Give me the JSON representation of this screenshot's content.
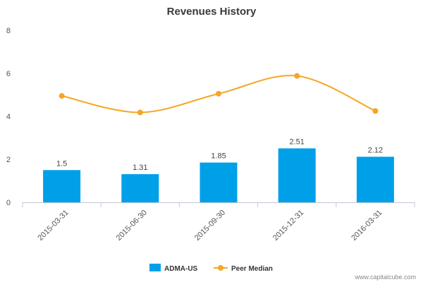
{
  "chart_data": {
    "type": "bar",
    "title": "Revenues History",
    "categories": [
      "2015-03-31",
      "2015-06-30",
      "2015-09-30",
      "2015-12-31",
      "2016-03-31"
    ],
    "series": [
      {
        "name": "ADMA-US",
        "kind": "bar",
        "values": [
          1.5,
          1.31,
          1.85,
          2.51,
          2.12
        ],
        "labels": [
          "1.5",
          "1.31",
          "1.85",
          "2.51",
          "2.12"
        ],
        "color": "#00a0e9"
      },
      {
        "name": "Peer Median",
        "kind": "line",
        "values": [
          4.95,
          4.18,
          5.05,
          5.88,
          4.25
        ],
        "color": "#f5a623"
      }
    ],
    "yticks": [
      "0",
      "2",
      "4",
      "6",
      "8"
    ],
    "ylim": [
      0,
      8
    ],
    "xlabel": "",
    "ylabel": "",
    "grid": false,
    "legend": "bottom"
  },
  "credit": "www.capitalcube.com",
  "colors": {
    "axis": "#c0c8d8",
    "text": "#555555"
  }
}
